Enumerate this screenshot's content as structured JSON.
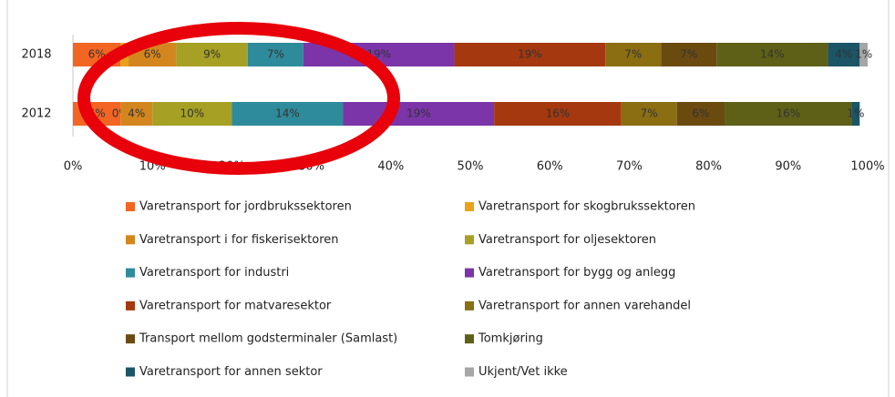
{
  "chart_data": {
    "type": "stacked-barh",
    "categories": [
      "2018",
      "2012"
    ],
    "xlim": [
      0,
      100
    ],
    "xticks": [
      {
        "value": 0,
        "label": "0%"
      },
      {
        "value": 10,
        "label": "10%"
      },
      {
        "value": 20,
        "label": "20%"
      },
      {
        "value": 30,
        "label": "30%"
      },
      {
        "value": 40,
        "label": "40%"
      },
      {
        "value": 50,
        "label": "50%"
      },
      {
        "value": 60,
        "label": "60%"
      },
      {
        "value": 70,
        "label": "70%"
      },
      {
        "value": 80,
        "label": "80%"
      },
      {
        "value": 90,
        "label": "90%"
      },
      {
        "value": 100,
        "label": "100%"
      }
    ],
    "series": [
      {
        "name": "Varetransport for jordbrukssektoren",
        "color": "#f26522",
        "values": [
          6,
          6
        ],
        "value_labels": [
          "6%",
          "6%"
        ]
      },
      {
        "name": "Varetransport for skogbrukssektoren",
        "color": "#e8a317",
        "values": [
          1,
          0
        ],
        "value_labels": [
          "1%",
          "0%"
        ]
      },
      {
        "name": "Varetransport i for fiskerisektoren",
        "color": "#d4861e",
        "values": [
          6,
          4
        ],
        "value_labels": [
          "6%",
          "4%"
        ]
      },
      {
        "name": "Varetransport for oljesektoren",
        "color": "#a6a024",
        "values": [
          9,
          10
        ],
        "value_labels": [
          "9%",
          "10%"
        ]
      },
      {
        "name": "Varetransport for industri",
        "color": "#2e8b9b",
        "values": [
          7,
          14
        ],
        "value_labels": [
          "7%",
          "14%"
        ]
      },
      {
        "name": "Varetransport for bygg og anlegg",
        "color": "#7b35a8",
        "values": [
          19,
          19
        ],
        "value_labels": [
          "19%",
          "19%"
        ]
      },
      {
        "name": "Varetransport for matvaresektor",
        "color": "#a5380f",
        "values": [
          19,
          16
        ],
        "value_labels": [
          "19%",
          "16%"
        ]
      },
      {
        "name": "Varetransport for annen varehandel",
        "color": "#8b6d12",
        "values": [
          7,
          7
        ],
        "value_labels": [
          "7%",
          "7%"
        ]
      },
      {
        "name": "Transport mellom godsterminaler (Samlast)",
        "color": "#6b4a10",
        "values": [
          7,
          6
        ],
        "value_labels": [
          "7%",
          "6%"
        ]
      },
      {
        "name": "Tomkjøring",
        "color": "#5e6018",
        "values": [
          14,
          16
        ],
        "value_labels": [
          "14%",
          "16%"
        ]
      },
      {
        "name": "Varetransport for annen sektor",
        "color": "#1b5566",
        "values": [
          4,
          1
        ],
        "value_labels": [
          "4%",
          "1%"
        ]
      },
      {
        "name": "Ukjent/Vet ikke",
        "color": "#a6a6a6",
        "values": [
          1,
          null
        ],
        "value_labels": [
          "1%",
          null
        ]
      }
    ]
  }
}
